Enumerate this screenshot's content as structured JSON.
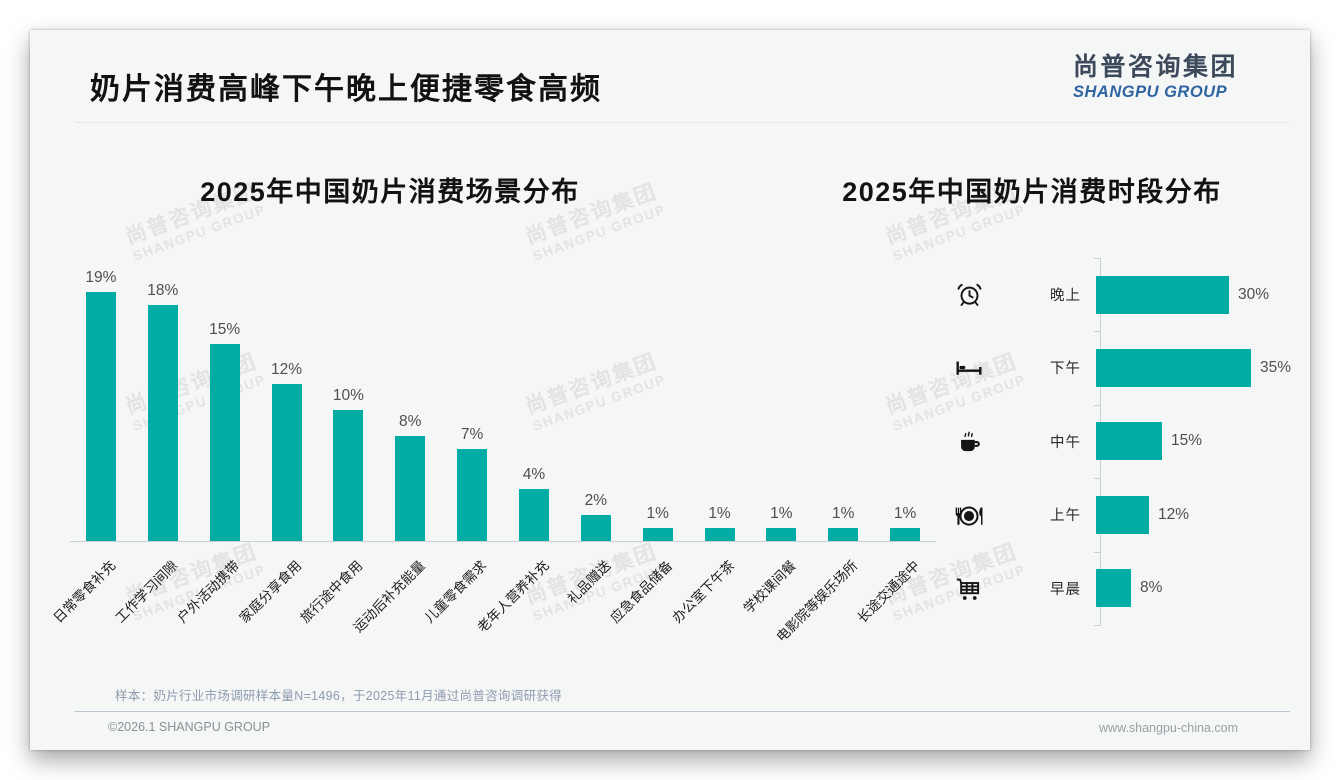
{
  "page": {
    "title": "奶片消费高峰下午晚上便捷零食高频",
    "logo": {
      "cn": "尚普咨询集团",
      "en": "SHANGPU GROUP"
    },
    "watermark": {
      "cn": "尚普咨询集团",
      "en": "SHANGPU GROUP"
    },
    "footer": {
      "sample_note": "样本：奶片行业市场调研样本量N=1496，于2025年11月通过尚普咨询调研获得",
      "copyright": "©2026.1 SHANGPU GROUP",
      "website": "www.shangpu-china.com"
    }
  },
  "colors": {
    "bar_teal": "#00ada4",
    "logo_cn": "#3d4a5c",
    "logo_en": "#2e64a0"
  },
  "chart_data": [
    {
      "type": "bar",
      "orientation": "vertical",
      "title": "2025年中国奶片消费场景分布",
      "categories": [
        "日常零食补充",
        "工作学习间隙",
        "户外活动携带",
        "家庭分享食用",
        "旅行途中食用",
        "运动后补充能量",
        "儿童零食需求",
        "老年人营养补充",
        "礼品赠送",
        "应急食品储备",
        "办公室下午茶",
        "学校课间餐",
        "电影院等娱乐场所",
        "长途交通途中"
      ],
      "values": [
        19,
        18,
        15,
        12,
        10,
        8,
        7,
        4,
        2,
        1,
        1,
        1,
        1,
        1
      ],
      "value_labels": [
        "19%",
        "18%",
        "15%",
        "12%",
        "10%",
        "8%",
        "7%",
        "4%",
        "2%",
        "1%",
        "1%",
        "1%",
        "1%",
        "1%"
      ],
      "unit": "%",
      "ylim": [
        0,
        20
      ],
      "grid": false,
      "legend": false
    },
    {
      "type": "bar",
      "orientation": "horizontal",
      "title": "2025年中国奶片消费时段分布",
      "categories": [
        "晚上",
        "下午",
        "中午",
        "上午",
        "早晨"
      ],
      "values": [
        30,
        35,
        15,
        12,
        8
      ],
      "value_labels": [
        "30%",
        "35%",
        "15%",
        "12%",
        "8%"
      ],
      "icons": [
        "alarm-clock-icon",
        "bed-icon",
        "coffee-icon",
        "dinner-plate-icon",
        "shopping-cart-icon"
      ],
      "unit": "%",
      "xlim": [
        0,
        40
      ],
      "grid": false,
      "legend": false
    }
  ]
}
